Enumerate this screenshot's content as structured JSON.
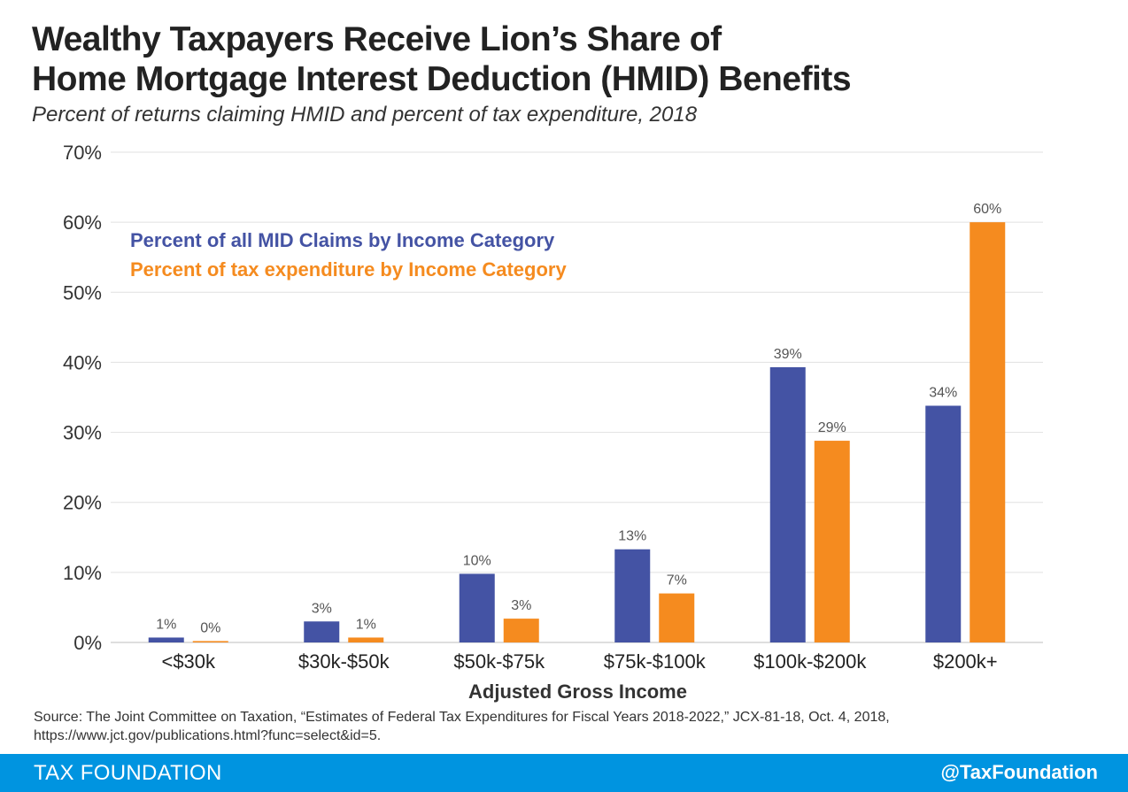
{
  "title_lines": [
    "Wealthy Taxpayers Receive Lion’s Share of",
    "Home Mortgage Interest Deduction (HMID) Benefits"
  ],
  "subtitle": "Percent of returns claiming HMID and percent of tax expenditure, 2018",
  "chart_data": {
    "type": "bar",
    "title": "Wealthy Taxpayers Receive Lion’s Share of Home Mortgage Interest Deduction (HMID) Benefits",
    "subtitle": "Percent of returns claiming HMID and percent of tax expenditure, 2018",
    "xlabel": "Adjusted Gross Income",
    "ylabel": "",
    "categories": [
      "<$30k",
      "$30k-$50k",
      "$50k-$75k",
      "$75k-$100k",
      "$100k-$200k",
      "$200k+"
    ],
    "series": [
      {
        "name": "Percent of all MID Claims by Income Category",
        "color": "#4453a4",
        "values": [
          0.7,
          3.0,
          9.8,
          13.3,
          39.3,
          33.8
        ],
        "labels": [
          "1%",
          "3%",
          "10%",
          "13%",
          "39%",
          "34%"
        ]
      },
      {
        "name": "Percent of tax expenditure by Income Category",
        "color": "#f58b1f",
        "values": [
          0.2,
          0.7,
          3.4,
          7.0,
          28.8,
          60.0
        ],
        "labels": [
          "0%",
          "1%",
          "3%",
          "7%",
          "29%",
          "60%"
        ]
      }
    ],
    "ylim": [
      0,
      70
    ],
    "yticks": [
      0,
      10,
      20,
      30,
      40,
      50,
      60,
      70
    ],
    "ytick_labels": [
      "0%",
      "10%",
      "20%",
      "30%",
      "40%",
      "50%",
      "60%",
      "70%"
    ],
    "grid": true,
    "legend_position": "top-left"
  },
  "source_lines": [
    "Source: The Joint Committee on Taxation, “Estimates of Federal Tax Expenditures for Fiscal Years 2018-2022,” JCX-81-18, Oct. 4, 2018,",
    "https://www.jct.gov/publications.html?func=select&id=5."
  ],
  "footer": {
    "brand": "TAX FOUNDATION",
    "handle": "@TaxFoundation",
    "color": "#0094e0"
  }
}
